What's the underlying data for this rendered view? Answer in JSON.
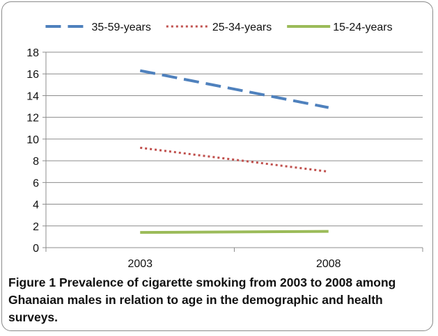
{
  "chart_data": {
    "type": "line",
    "categories": [
      "2003",
      "2008"
    ],
    "series": [
      {
        "name": "35-59-years",
        "values": [
          16.3,
          12.9
        ],
        "color": "#4f81bd",
        "style": "dashed"
      },
      {
        "name": "25-34-years",
        "values": [
          9.2,
          7.0
        ],
        "color": "#c0504d",
        "style": "dotted"
      },
      {
        "name": "15-24-years",
        "values": [
          1.4,
          1.5
        ],
        "color": "#9bbb59",
        "style": "solid"
      }
    ],
    "ylim": [
      0,
      18
    ],
    "yticks": [
      "0",
      "2",
      "4",
      "6",
      "8",
      "10",
      "12",
      "14",
      "16",
      "18"
    ],
    "grid": true,
    "legend_position": "top"
  },
  "caption": {
    "label": "Figure 1",
    "text": "Prevalence of cigarette smoking from 2003 to 2008 among Ghanaian males in relation to age in the demographic and health surveys."
  }
}
